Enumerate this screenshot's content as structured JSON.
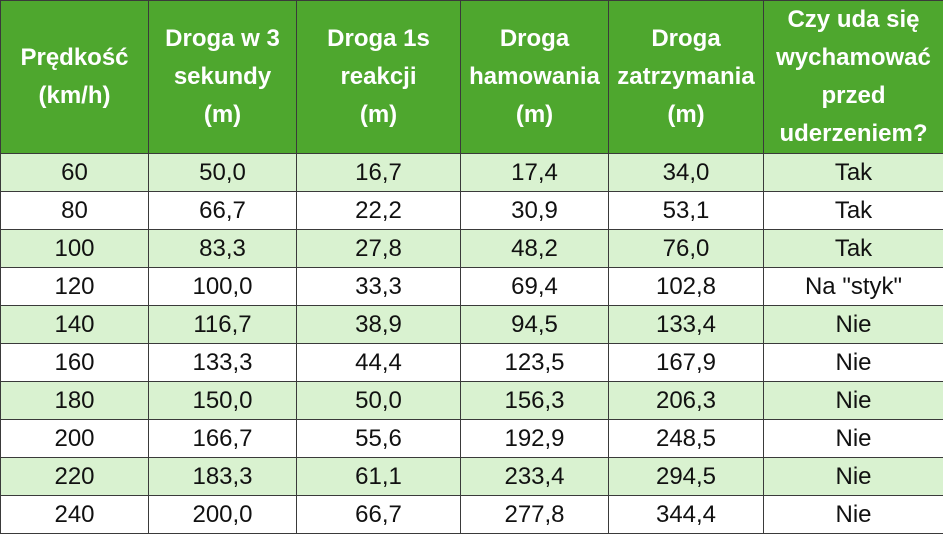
{
  "headers": [
    "Prędkość\n(km/h)",
    "Droga w 3\nsekundy\n(m)",
    "Droga 1s\nreakcji\n(m)",
    "Droga\nhamowania\n(m)",
    "Droga\nzatrzymania\n(m)",
    "Czy uda się\nwychamować\nprzed\nuderzeniem?"
  ],
  "rows": [
    [
      "60",
      "50,0",
      "16,7",
      "17,4",
      "34,0",
      "Tak"
    ],
    [
      "80",
      "66,7",
      "22,2",
      "30,9",
      "53,1",
      "Tak"
    ],
    [
      "100",
      "83,3",
      "27,8",
      "48,2",
      "76,0",
      "Tak"
    ],
    [
      "120",
      "100,0",
      "33,3",
      "69,4",
      "102,8",
      "Na \"styk\""
    ],
    [
      "140",
      "116,7",
      "38,9",
      "94,5",
      "133,4",
      "Nie"
    ],
    [
      "160",
      "133,3",
      "44,4",
      "123,5",
      "167,9",
      "Nie"
    ],
    [
      "180",
      "150,0",
      "50,0",
      "156,3",
      "206,3",
      "Nie"
    ],
    [
      "200",
      "166,7",
      "55,6",
      "192,9",
      "248,5",
      "Nie"
    ],
    [
      "220",
      "183,3",
      "61,1",
      "233,4",
      "294,5",
      "Nie"
    ],
    [
      "240",
      "200,0",
      "66,7",
      "277,8",
      "344,4",
      "Nie"
    ]
  ],
  "colors": {
    "header_bg": "#4ea72e",
    "header_text": "#ffffff",
    "row_shade": "#d9f2d0",
    "row_plain": "#ffffff"
  }
}
